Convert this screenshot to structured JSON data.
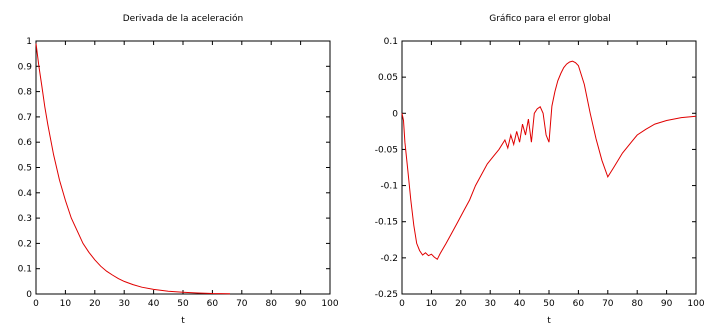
{
  "chart_data": [
    {
      "type": "line",
      "title": "Derivada de la aceleración",
      "xlabel": "t",
      "ylabel": "",
      "xlim": [
        0,
        100
      ],
      "ylim": [
        0,
        1
      ],
      "xticks": [
        "0",
        "10",
        "20",
        "30",
        "40",
        "50",
        "60",
        "70",
        "80",
        "90",
        "100"
      ],
      "yticks": [
        "0",
        "0.1",
        "0.2",
        "0.3",
        "0.4",
        "0.5",
        "0.6",
        "0.7",
        "0.8",
        "0.9",
        "1"
      ],
      "grid": false,
      "series": [
        {
          "color": "#e00000",
          "x": [
            0,
            1,
            2,
            3,
            4,
            5,
            6,
            8,
            10,
            12,
            14,
            16,
            18,
            20,
            22,
            24,
            26,
            28,
            30,
            33,
            36,
            40,
            45,
            50,
            55,
            60,
            66
          ],
          "y": [
            0.99,
            0.9,
            0.82,
            0.74,
            0.67,
            0.61,
            0.55,
            0.45,
            0.37,
            0.3,
            0.25,
            0.2,
            0.165,
            0.135,
            0.11,
            0.09,
            0.075,
            0.061,
            0.05,
            0.037,
            0.027,
            0.018,
            0.011,
            0.007,
            0.004,
            0.002,
            0.001
          ]
        }
      ]
    },
    {
      "type": "line",
      "title": "Gráfico para el error global",
      "xlabel": "t",
      "ylabel": "",
      "xlim": [
        0,
        100
      ],
      "ylim": [
        -0.25,
        0.1
      ],
      "xticks": [
        "0",
        "10",
        "20",
        "30",
        "40",
        "50",
        "60",
        "70",
        "80",
        "90",
        "100"
      ],
      "yticks": [
        "-0.25",
        "-0.2",
        "-0.15",
        "-0.1",
        "-0.05",
        "0",
        "0.05",
        "0.1"
      ],
      "grid": false,
      "series": [
        {
          "color": "#e00000",
          "x": [
            0,
            0.5,
            1,
            2,
            3,
            4,
            5,
            6,
            7,
            8,
            9,
            10,
            11,
            12,
            13,
            15,
            17,
            19,
            21,
            23,
            25,
            27,
            29,
            31,
            33,
            35,
            36,
            37,
            38,
            39,
            40,
            41,
            42,
            43,
            44,
            45,
            46,
            47,
            48,
            49,
            50,
            51,
            52,
            53,
            54,
            55,
            56,
            57,
            58,
            59,
            60,
            62,
            64,
            66,
            68,
            70,
            72,
            75,
            78,
            80,
            83,
            86,
            90,
            95,
            100
          ],
          "y": [
            0,
            -0.01,
            -0.04,
            -0.08,
            -0.12,
            -0.155,
            -0.18,
            -0.19,
            -0.196,
            -0.193,
            -0.197,
            -0.195,
            -0.199,
            -0.202,
            -0.194,
            -0.18,
            -0.165,
            -0.15,
            -0.135,
            -0.12,
            -0.1,
            -0.085,
            -0.07,
            -0.06,
            -0.05,
            -0.037,
            -0.048,
            -0.03,
            -0.043,
            -0.025,
            -0.04,
            -0.015,
            -0.03,
            -0.008,
            -0.04,
            0.0,
            0.006,
            0.009,
            0.0,
            -0.03,
            -0.04,
            0.01,
            0.03,
            0.045,
            0.055,
            0.063,
            0.068,
            0.071,
            0.072,
            0.07,
            0.066,
            0.04,
            0.0,
            -0.035,
            -0.065,
            -0.088,
            -0.075,
            -0.055,
            -0.04,
            -0.03,
            -0.022,
            -0.015,
            -0.01,
            -0.006,
            -0.004
          ]
        }
      ]
    }
  ]
}
